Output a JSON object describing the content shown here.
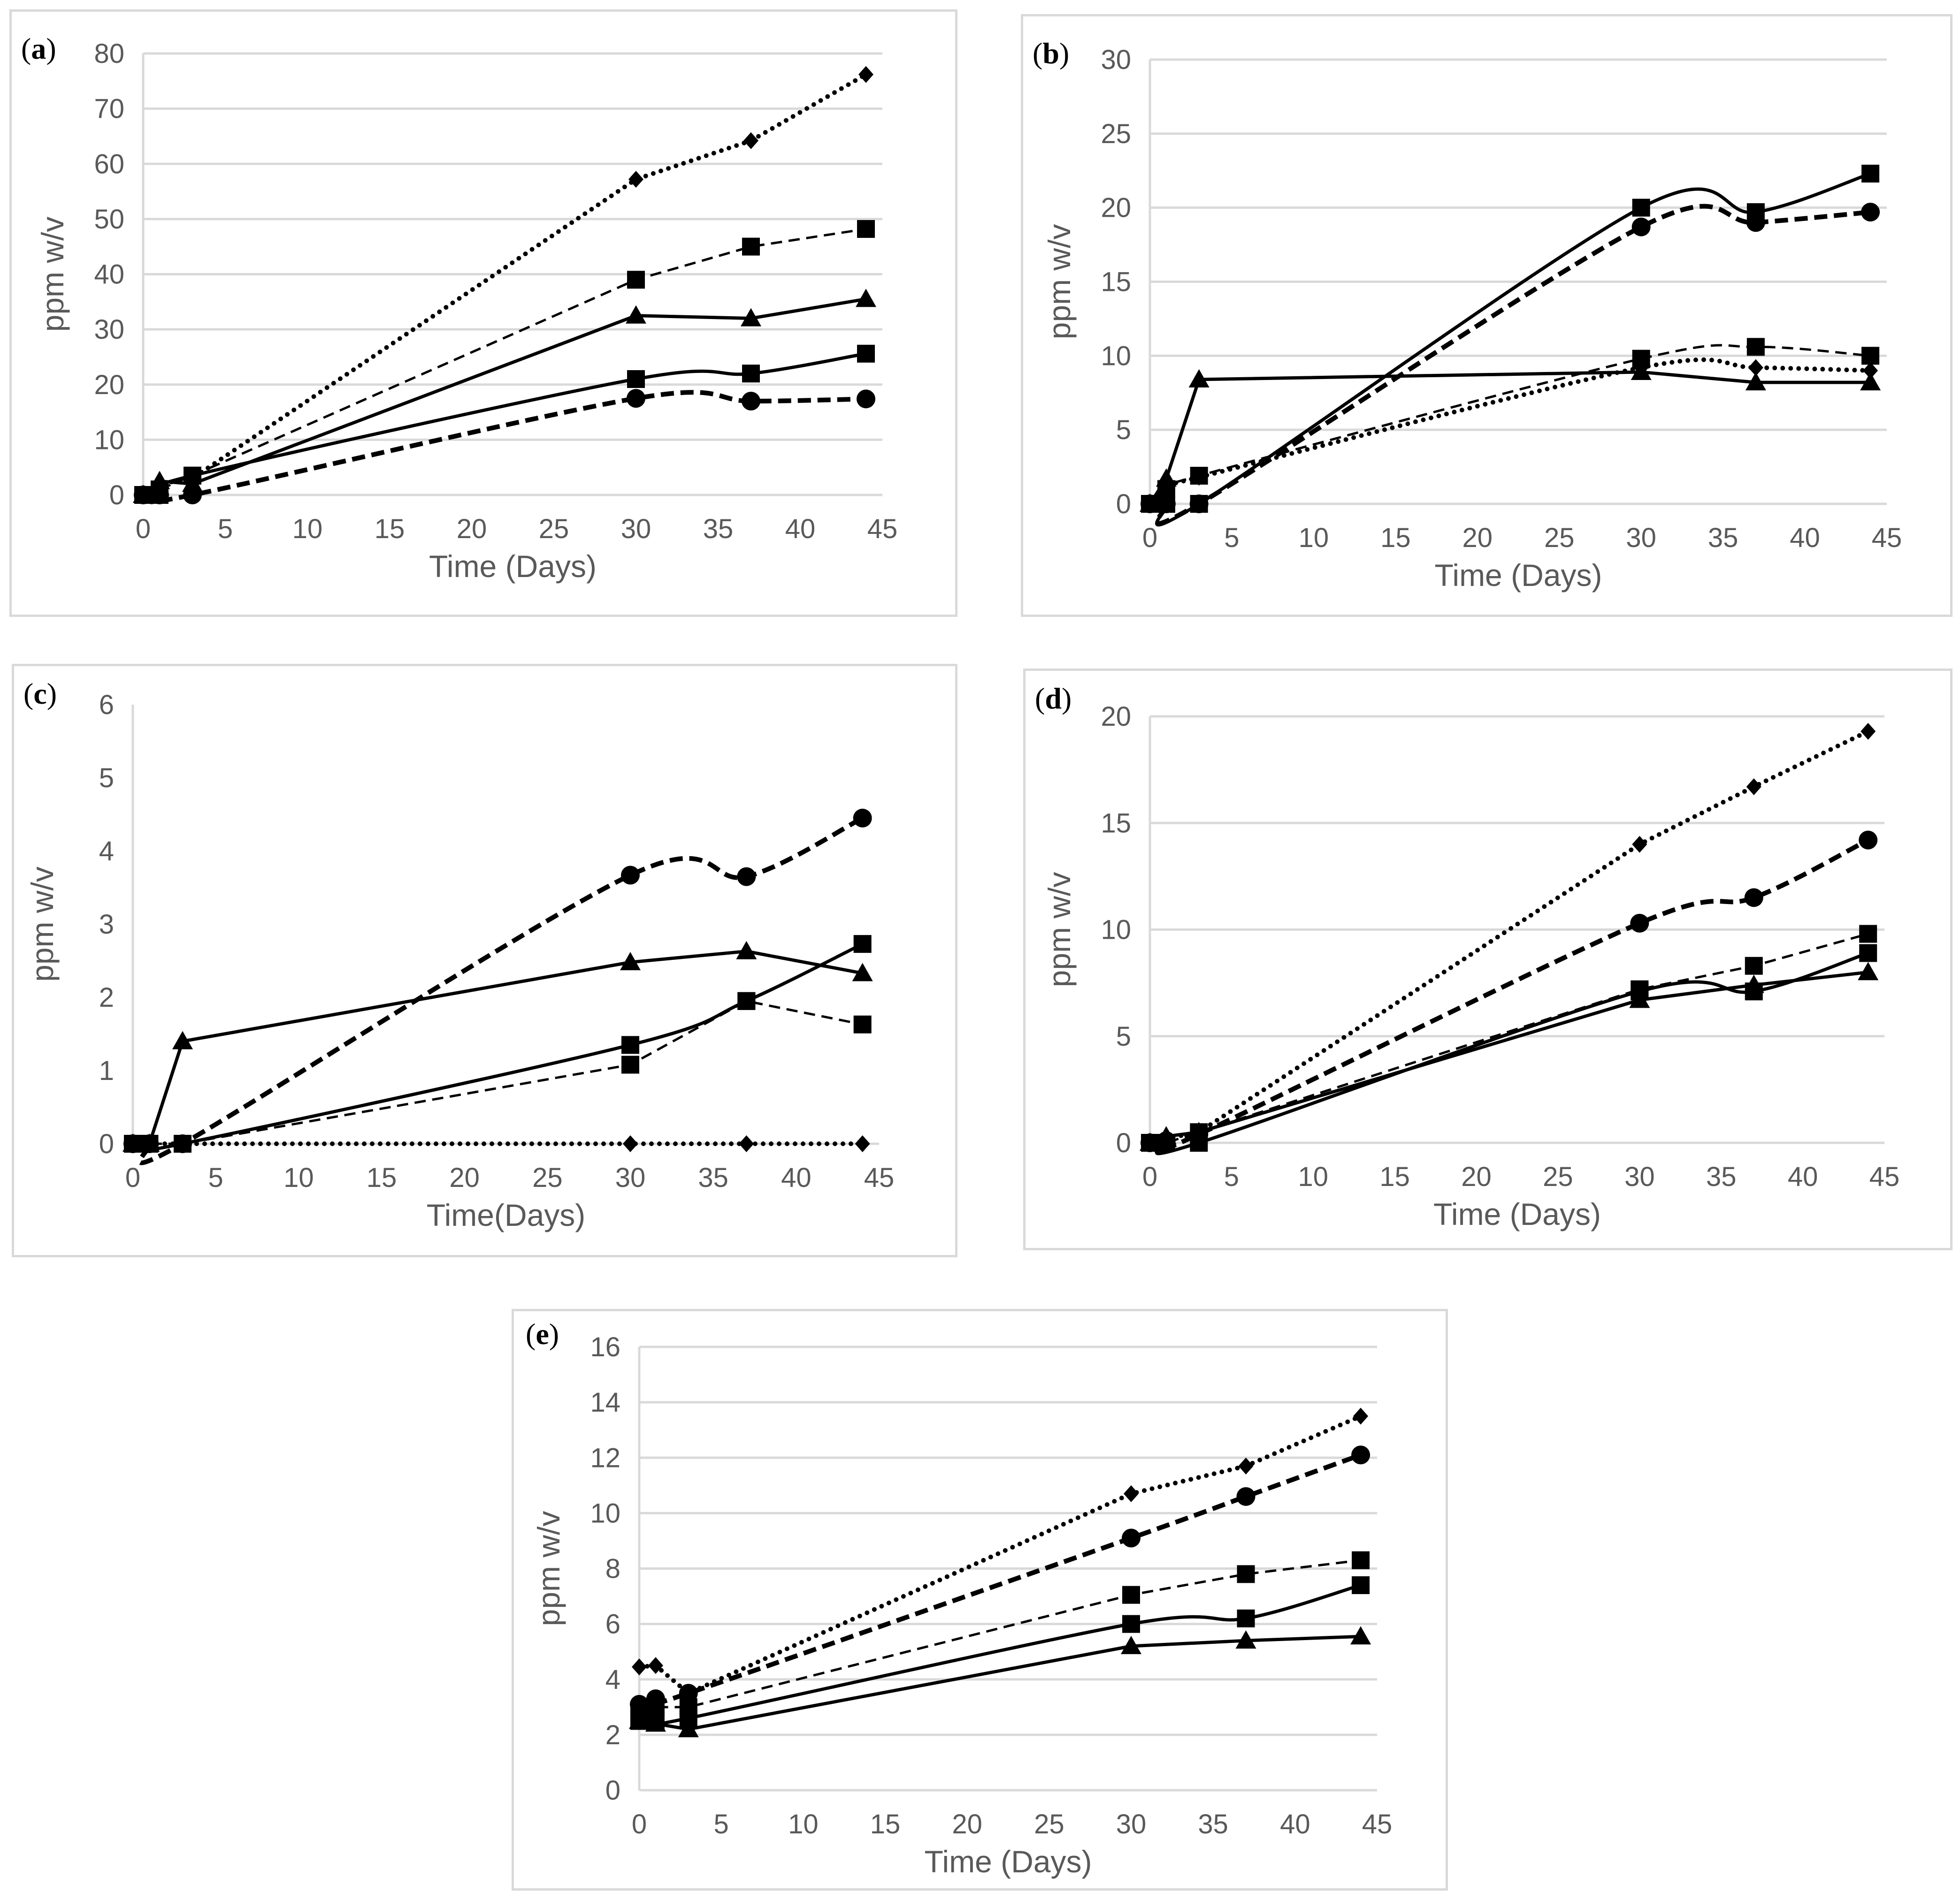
{
  "figure": {
    "colors": {
      "series": "#000000",
      "grid": "#d9d9d9",
      "text": "#595959"
    }
  },
  "chart_data": [
    {
      "type": "line",
      "panel_label": "a",
      "xlabel": "Time (Days)",
      "ylabel": "ppm w/v",
      "xlim": [
        0,
        45
      ],
      "ylim": [
        0,
        80
      ],
      "xticks": [
        0,
        5,
        10,
        15,
        20,
        25,
        30,
        35,
        40,
        45
      ],
      "yticks": [
        0,
        10,
        20,
        30,
        40,
        50,
        60,
        70,
        80
      ],
      "grid": "horizontal",
      "series": [
        {
          "name": "dotted-diamond",
          "marker": "diamond",
          "line": "dotted",
          "smooth": false,
          "x": [
            0,
            1,
            3,
            30,
            37,
            44
          ],
          "y": [
            0,
            2,
            3,
            57.2,
            64.2,
            76.2
          ]
        },
        {
          "name": "dashed-square",
          "marker": "square",
          "line": "dashed-thin",
          "smooth": false,
          "x": [
            0,
            1,
            3,
            30,
            37,
            44
          ],
          "y": [
            0,
            1,
            3.5,
            39,
            45,
            48.2
          ]
        },
        {
          "name": "solid-triangle",
          "marker": "triangle",
          "line": "solid",
          "smooth": false,
          "x": [
            0,
            1,
            3,
            30,
            37,
            44
          ],
          "y": [
            0,
            2.5,
            2,
            32.5,
            32,
            35.5
          ]
        },
        {
          "name": "solid-square",
          "marker": "square",
          "line": "solid",
          "smooth": true,
          "x": [
            0,
            1,
            3,
            30,
            37,
            44
          ],
          "y": [
            0,
            0,
            3.5,
            21,
            22,
            25.6
          ]
        },
        {
          "name": "dashed-circle",
          "marker": "circle",
          "line": "dashed-thick",
          "smooth": true,
          "x": [
            0,
            1,
            3,
            30,
            37,
            44
          ],
          "y": [
            0,
            0,
            0,
            17.5,
            17,
            17.4
          ]
        }
      ]
    },
    {
      "type": "line",
      "panel_label": "b",
      "xlabel": "Time (Days)",
      "ylabel": "ppm w/v",
      "xlim": [
        0,
        45
      ],
      "ylim": [
        0,
        30
      ],
      "xticks": [
        0,
        5,
        10,
        15,
        20,
        25,
        30,
        35,
        40,
        45
      ],
      "yticks": [
        0,
        5,
        10,
        15,
        20,
        25,
        30
      ],
      "grid": "horizontal",
      "series": [
        {
          "name": "solid-square",
          "marker": "square",
          "line": "solid",
          "smooth": true,
          "x": [
            0,
            1,
            3,
            30,
            37,
            44
          ],
          "y": [
            0,
            0,
            0,
            20,
            19.7,
            22.3
          ]
        },
        {
          "name": "dashed-circle",
          "marker": "circle",
          "line": "dashed-thick",
          "smooth": true,
          "x": [
            0,
            1,
            3,
            30,
            37,
            44
          ],
          "y": [
            0,
            0,
            0,
            18.7,
            19,
            19.7
          ]
        },
        {
          "name": "solid-triangle",
          "marker": "triangle",
          "line": "solid",
          "smooth": false,
          "x": [
            0,
            1,
            3,
            30,
            37,
            44
          ],
          "y": [
            0,
            1.7,
            8.4,
            8.9,
            8.2,
            8.2
          ]
        },
        {
          "name": "dashed-square",
          "marker": "square",
          "line": "dashed-thin",
          "smooth": true,
          "x": [
            0,
            1,
            3,
            30,
            37,
            44
          ],
          "y": [
            0,
            1,
            1.9,
            9.8,
            10.6,
            10
          ]
        },
        {
          "name": "dotted-diamond",
          "marker": "diamond",
          "line": "dotted",
          "smooth": true,
          "x": [
            0,
            1,
            3,
            30,
            37,
            44
          ],
          "y": [
            0,
            1.2,
            1.8,
            9.2,
            9.2,
            9
          ]
        }
      ]
    },
    {
      "type": "line",
      "panel_label": "c",
      "xlabel": "Time(Days)",
      "ylabel": "ppm w/v",
      "xlim": [
        0,
        45
      ],
      "ylim": [
        0,
        6
      ],
      "xticks": [
        0,
        5,
        10,
        15,
        20,
        25,
        30,
        35,
        40,
        45
      ],
      "yticks": [
        0,
        1,
        2,
        3,
        4,
        5,
        6
      ],
      "grid": "none",
      "series": [
        {
          "name": "dashed-circle",
          "marker": "circle",
          "line": "dashed-thick",
          "smooth": true,
          "x": [
            0,
            1,
            3,
            30,
            37,
            44
          ],
          "y": [
            0,
            0,
            0,
            3.67,
            3.65,
            4.45
          ]
        },
        {
          "name": "solid-triangle",
          "marker": "triangle",
          "line": "solid",
          "smooth": false,
          "x": [
            0,
            1,
            3,
            30,
            37,
            44
          ],
          "y": [
            0,
            0,
            1.4,
            2.48,
            2.63,
            2.33
          ]
        },
        {
          "name": "solid-square",
          "marker": "square",
          "line": "solid",
          "smooth": true,
          "x": [
            0,
            1,
            3,
            30,
            37,
            44
          ],
          "y": [
            0,
            0,
            0,
            1.35,
            1.95,
            2.73
          ]
        },
        {
          "name": "dashed-square",
          "marker": "square",
          "line": "dashed-thin",
          "smooth": false,
          "x": [
            0,
            1,
            3,
            30,
            37,
            44
          ],
          "y": [
            0,
            0,
            0,
            1.08,
            1.95,
            1.63
          ]
        },
        {
          "name": "dotted-diamond",
          "marker": "diamond",
          "line": "dotted",
          "smooth": false,
          "x": [
            0,
            1,
            3,
            30,
            37,
            44
          ],
          "y": [
            0,
            0,
            0,
            0,
            0,
            0
          ]
        }
      ]
    },
    {
      "type": "line",
      "panel_label": "d",
      "xlabel": "Time (Days)",
      "ylabel": "ppm w/v",
      "xlim": [
        0,
        45
      ],
      "ylim": [
        0,
        20
      ],
      "xticks": [
        0,
        5,
        10,
        15,
        20,
        25,
        30,
        35,
        40,
        45
      ],
      "yticks": [
        0,
        5,
        10,
        15,
        20
      ],
      "grid": "horizontal",
      "series": [
        {
          "name": "dotted-diamond",
          "marker": "diamond",
          "line": "dotted",
          "smooth": false,
          "x": [
            0,
            1,
            3,
            30,
            37,
            44
          ],
          "y": [
            0,
            0.2,
            0.5,
            14,
            16.7,
            19.3
          ]
        },
        {
          "name": "dashed-circle",
          "marker": "circle",
          "line": "dashed-thick",
          "smooth": true,
          "x": [
            0,
            1,
            3,
            30,
            37,
            44
          ],
          "y": [
            0,
            0.1,
            0.4,
            10.3,
            11.5,
            14.2
          ]
        },
        {
          "name": "dashed-square",
          "marker": "square",
          "line": "dashed-thin",
          "smooth": false,
          "x": [
            0,
            1,
            3,
            30,
            37,
            44
          ],
          "y": [
            0,
            0,
            0.5,
            7.2,
            8.3,
            9.8
          ]
        },
        {
          "name": "solid-square",
          "marker": "square",
          "line": "solid",
          "smooth": true,
          "x": [
            0,
            1,
            3,
            30,
            37,
            44
          ],
          "y": [
            0,
            0,
            0,
            7.1,
            7.1,
            8.9
          ]
        },
        {
          "name": "solid-triangle",
          "marker": "triangle",
          "line": "solid",
          "smooth": false,
          "x": [
            0,
            1,
            3,
            30,
            37,
            44
          ],
          "y": [
            0,
            0.3,
            0.5,
            6.7,
            7.4,
            8
          ]
        }
      ]
    },
    {
      "type": "line",
      "panel_label": "e",
      "xlabel": "Time (Days)",
      "ylabel": "ppm w/v",
      "xlim": [
        0,
        45
      ],
      "ylim": [
        0,
        16
      ],
      "xticks": [
        0,
        5,
        10,
        15,
        20,
        25,
        30,
        35,
        40,
        45
      ],
      "yticks": [
        0,
        2,
        4,
        6,
        8,
        10,
        12,
        14,
        16
      ],
      "grid": "horizontal",
      "series": [
        {
          "name": "dotted-diamond",
          "marker": "diamond",
          "line": "dotted",
          "smooth": false,
          "x": [
            0,
            1,
            3,
            30,
            37,
            44
          ],
          "y": [
            4.45,
            4.5,
            3.5,
            10.7,
            11.7,
            13.5
          ]
        },
        {
          "name": "dashed-circle",
          "marker": "circle",
          "line": "dashed-thick",
          "smooth": true,
          "x": [
            0,
            1,
            3,
            30,
            37,
            44
          ],
          "y": [
            3.1,
            3.3,
            3.5,
            9.1,
            10.6,
            12.1
          ]
        },
        {
          "name": "dashed-square",
          "marker": "square",
          "line": "dashed-thin",
          "smooth": false,
          "x": [
            0,
            1,
            3,
            30,
            37,
            44
          ],
          "y": [
            2.9,
            3,
            3,
            7.05,
            7.8,
            8.3
          ]
        },
        {
          "name": "solid-square",
          "marker": "square",
          "line": "solid",
          "smooth": true,
          "x": [
            0,
            1,
            3,
            30,
            37,
            44
          ],
          "y": [
            2.5,
            2.5,
            2.6,
            6,
            6.2,
            7.4
          ]
        },
        {
          "name": "solid-triangle",
          "marker": "triangle",
          "line": "solid",
          "smooth": false,
          "x": [
            0,
            1,
            3,
            30,
            37,
            44
          ],
          "y": [
            2.5,
            2.4,
            2.2,
            5.2,
            5.4,
            5.55
          ]
        }
      ]
    }
  ]
}
